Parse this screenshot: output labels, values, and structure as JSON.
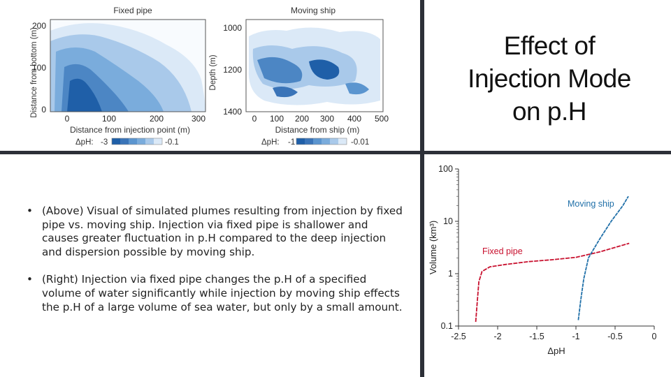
{
  "slide": {
    "title_lines": [
      "Effect of",
      "Injection Mode",
      "on p.H"
    ],
    "bullets": [
      "(Above) Visual of simulated plumes resulting from injection by fixed pipe vs. moving ship. Injection via fixed pipe is shallower and causes greater fluctuation in p.H compared to the deep injection and dispersion possible by moving ship.",
      "(Right) Injection via fixed pipe changes the p.H of a specified volume of water significantly while injection by moving ship effects the p.H of a large volume of sea water, but only by a small amount."
    ],
    "bullet_symbol": "•"
  },
  "plume_figure": {
    "left_panel": {
      "title": "Fixed pipe",
      "ylabel": "Distance from bottom (m)",
      "xlabel": "Distance from injection point (m)",
      "yticks": [
        "200",
        "100",
        "0"
      ],
      "xticks": [
        "0",
        "100",
        "200",
        "300"
      ],
      "colorbar_label": "ΔpH:",
      "colorbar_min": "-3",
      "colorbar_max": "-0.1"
    },
    "right_panel": {
      "title": "Moving ship",
      "ylabel": "Depth (m)",
      "xlabel": "Distance from ship (m)",
      "yticks": [
        "1000",
        "1200",
        "1400"
      ],
      "xticks": [
        "0",
        "100",
        "200",
        "300",
        "400",
        "500"
      ],
      "colorbar_label": "ΔpH:",
      "colorbar_min": "-1",
      "colorbar_max": "-0.01"
    },
    "colors": {
      "deep": "#1f5fa8",
      "mid": "#5b95cf",
      "light": "#a9c9ea",
      "pale": "#dbe9f7"
    }
  },
  "chart_data": {
    "type": "line",
    "xlabel": "ΔpH",
    "ylabel": "Volume (km³)",
    "xlim": [
      -2.5,
      0
    ],
    "ylim": [
      0.1,
      100
    ],
    "yscale": "log",
    "xticks": [
      "-2.5",
      "-2",
      "-1.5",
      "-1",
      "-0.5",
      "0"
    ],
    "yticks": [
      "0.1",
      "1",
      "10",
      "100"
    ],
    "series": [
      {
        "name": "Fixed pipe",
        "color": "#c8102e",
        "points": [
          [
            -2.28,
            0.12
          ],
          [
            -2.26,
            0.3
          ],
          [
            -2.24,
            0.7
          ],
          [
            -2.2,
            1.1
          ],
          [
            -2.1,
            1.35
          ],
          [
            -1.9,
            1.5
          ],
          [
            -1.6,
            1.7
          ],
          [
            -1.3,
            1.85
          ],
          [
            -1.0,
            2.05
          ],
          [
            -0.7,
            2.6
          ],
          [
            -0.32,
            3.8
          ]
        ]
      },
      {
        "name": "Moving ship",
        "color": "#1f6fa8",
        "points": [
          [
            -0.97,
            0.13
          ],
          [
            -0.94,
            0.3
          ],
          [
            -0.9,
            0.8
          ],
          [
            -0.84,
            2.0
          ],
          [
            -0.7,
            4.5
          ],
          [
            -0.55,
            10
          ],
          [
            -0.4,
            20
          ],
          [
            -0.33,
            30
          ]
        ]
      }
    ]
  }
}
